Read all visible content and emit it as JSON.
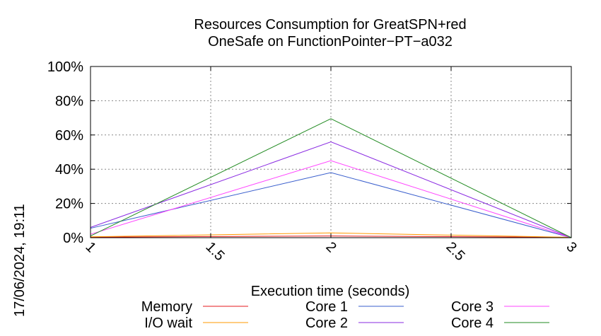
{
  "chart_data": {
    "type": "line",
    "title": [
      "Resources Consumption for GreatSPN+red",
      "OneSafe on FunctionPointer−PT−a032"
    ],
    "xlabel": "Execution time (seconds)",
    "ylabel": "",
    "xlim": [
      1,
      3
    ],
    "ylim": [
      0,
      100
    ],
    "x_ticks": [
      "1",
      "1.5",
      "2",
      "2.5",
      "3"
    ],
    "y_ticks": [
      "0%",
      "20%",
      "40%",
      "60%",
      "80%",
      "100%"
    ],
    "grid": true,
    "legend_position": "bottom",
    "x": [
      1,
      2,
      3
    ],
    "series": [
      {
        "name": "Memory",
        "color": "#e41a1c",
        "values": [
          0.3,
          1.0,
          0.2
        ]
      },
      {
        "name": "I/O wait",
        "color": "#ff9900",
        "values": [
          0.5,
          2.8,
          0.2
        ]
      },
      {
        "name": "Core 1",
        "color": "#3a5fcd",
        "values": [
          5.5,
          38,
          0
        ]
      },
      {
        "name": "Core 2",
        "color": "#8a2be2",
        "values": [
          6,
          56,
          0
        ]
      },
      {
        "name": "Core 3",
        "color": "#ff44ff",
        "values": [
          2,
          45,
          0
        ]
      },
      {
        "name": "Core 4",
        "color": "#228b22",
        "values": [
          1,
          69.5,
          0
        ]
      }
    ]
  },
  "timestamp": "17/06/2024, 19:11"
}
